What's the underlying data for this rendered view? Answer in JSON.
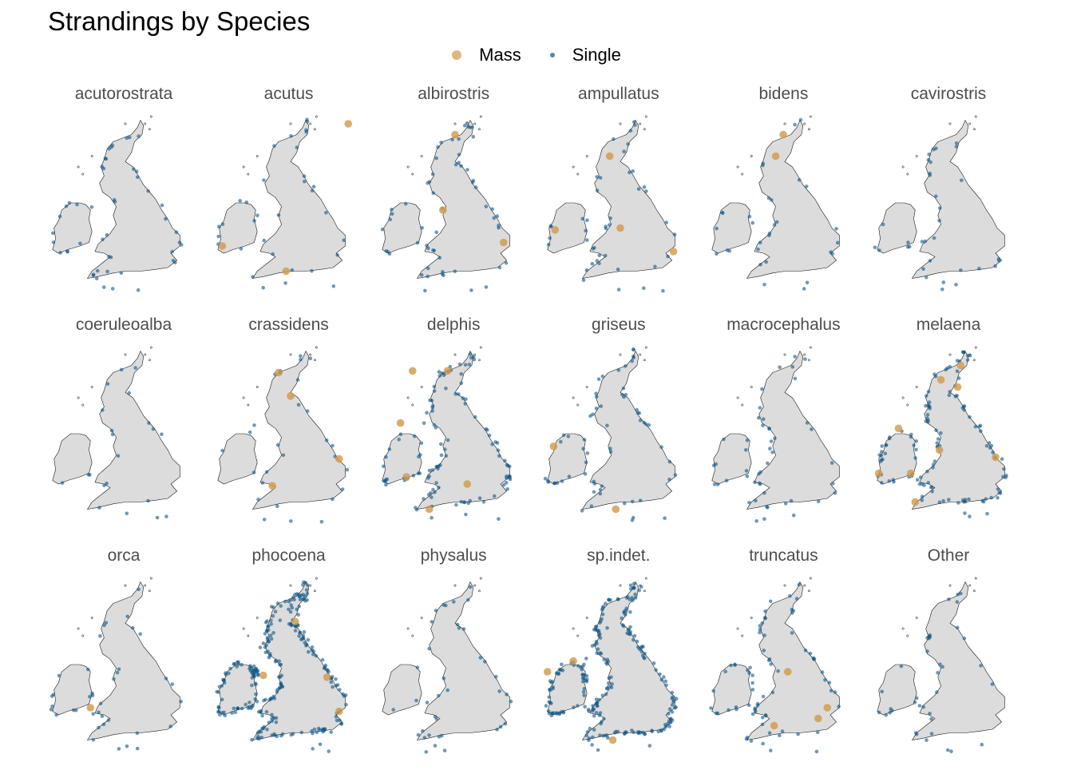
{
  "title": "Strandings by Species",
  "legend": {
    "items": [
      {
        "label": "Mass",
        "color": "#d29848"
      },
      {
        "label": "Single",
        "color": "#0f5585"
      }
    ]
  },
  "colors": {
    "land": "#dcdcdc",
    "coast": "#1a1a1a",
    "mass": "#d29848",
    "single": "#0f5585"
  },
  "panels": [
    {
      "name": "acutorostrata",
      "density": 45,
      "mass": [],
      "seed": 11
    },
    {
      "name": "acutus",
      "density": 30,
      "mass": [
        [
          0.88,
          0.04
        ],
        [
          0.05,
          0.72
        ],
        [
          0.47,
          0.86
        ]
      ],
      "seed": 12
    },
    {
      "name": "albirostris",
      "density": 55,
      "mass": [
        [
          0.5,
          0.1
        ],
        [
          0.42,
          0.52
        ],
        [
          0.82,
          0.7
        ]
      ],
      "seed": 13
    },
    {
      "name": "ampullatus",
      "density": 40,
      "mass": [
        [
          0.43,
          0.22
        ],
        [
          0.07,
          0.63
        ],
        [
          0.5,
          0.62
        ],
        [
          0.85,
          0.75
        ]
      ],
      "seed": 14
    },
    {
      "name": "bidens",
      "density": 28,
      "mass": [
        [
          0.49,
          0.1
        ],
        [
          0.44,
          0.22
        ]
      ],
      "seed": 15
    },
    {
      "name": "cavirostris",
      "density": 30,
      "mass": [],
      "seed": 16
    },
    {
      "name": "coeruleoalba",
      "density": 18,
      "mass": [],
      "seed": 17
    },
    {
      "name": "crassidens",
      "density": 25,
      "mass": [
        [
          0.42,
          0.14
        ],
        [
          0.5,
          0.27
        ],
        [
          0.82,
          0.62
        ],
        [
          0.38,
          0.77
        ]
      ],
      "seed": 18
    },
    {
      "name": "delphis",
      "density": 110,
      "mass": [
        [
          0.22,
          0.13
        ],
        [
          0.45,
          0.13
        ],
        [
          0.14,
          0.42
        ],
        [
          0.18,
          0.72
        ],
        [
          0.58,
          0.76
        ],
        [
          0.33,
          0.9
        ]
      ],
      "seed": 19
    },
    {
      "name": "griseus",
      "density": 60,
      "mass": [
        [
          0.06,
          0.55
        ],
        [
          0.47,
          0.9
        ]
      ],
      "seed": 20
    },
    {
      "name": "macrocephalus",
      "density": 45,
      "mass": [],
      "seed": 21
    },
    {
      "name": "melaena",
      "density": 120,
      "mass": [
        [
          0.57,
          0.1
        ],
        [
          0.44,
          0.18
        ],
        [
          0.55,
          0.22
        ],
        [
          0.16,
          0.45
        ],
        [
          0.43,
          0.57
        ],
        [
          0.8,
          0.61
        ],
        [
          0.03,
          0.7
        ],
        [
          0.24,
          0.7
        ],
        [
          0.27,
          0.86
        ]
      ],
      "seed": 22
    },
    {
      "name": "orca",
      "density": 35,
      "mass": [
        [
          0.27,
          0.72
        ]
      ],
      "seed": 23
    },
    {
      "name": "phocoena",
      "density": 260,
      "mass": [
        [
          0.53,
          0.24
        ],
        [
          0.32,
          0.54
        ],
        [
          0.74,
          0.55
        ],
        [
          0.82,
          0.74
        ]
      ],
      "seed": 24
    },
    {
      "name": "physalus",
      "density": 35,
      "mass": [],
      "seed": 25
    },
    {
      "name": "sp.indet.",
      "density": 230,
      "mass": [
        [
          0.19,
          0.46
        ],
        [
          0.02,
          0.52
        ],
        [
          0.45,
          0.9
        ]
      ],
      "seed": 26
    },
    {
      "name": "truncatus",
      "density": 70,
      "mass": [
        [
          0.52,
          0.52
        ],
        [
          0.43,
          0.82
        ],
        [
          0.72,
          0.78
        ],
        [
          0.78,
          0.72
        ]
      ],
      "seed": 27
    },
    {
      "name": "Other",
      "density": 35,
      "mass": [],
      "seed": 28
    }
  ]
}
